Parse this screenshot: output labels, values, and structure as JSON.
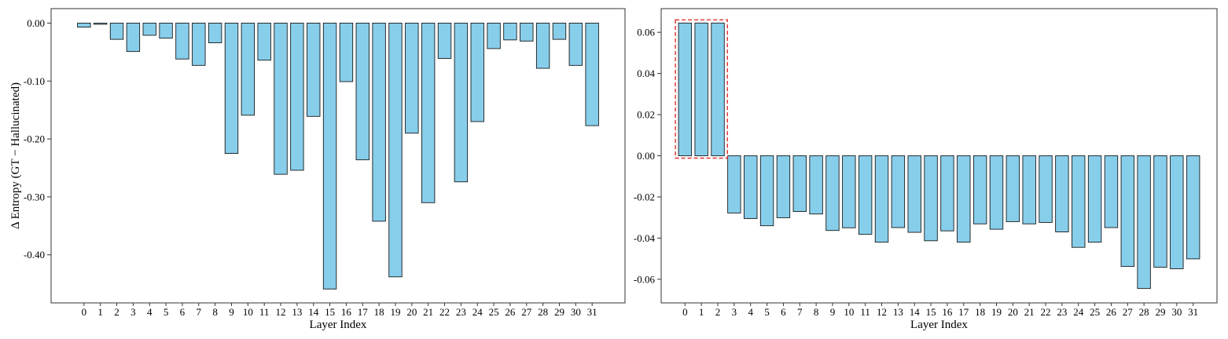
{
  "chart_data": [
    {
      "type": "bar",
      "categories": [
        "0",
        "1",
        "2",
        "3",
        "4",
        "5",
        "6",
        "7",
        "8",
        "9",
        "10",
        "11",
        "12",
        "13",
        "14",
        "15",
        "16",
        "17",
        "18",
        "19",
        "20",
        "21",
        "22",
        "23",
        "24",
        "25",
        "26",
        "27",
        "28",
        "29",
        "30",
        "31"
      ],
      "values": [
        -0.007,
        -0.002,
        -0.028,
        -0.049,
        -0.021,
        -0.026,
        -0.062,
        -0.073,
        -0.034,
        -0.225,
        -0.159,
        -0.064,
        -0.261,
        -0.254,
        -0.161,
        -0.459,
        -0.101,
        -0.236,
        -0.342,
        -0.438,
        -0.19,
        -0.31,
        -0.061,
        -0.274,
        -0.17,
        -0.044,
        -0.029,
        -0.031,
        -0.078,
        -0.028,
        -0.073,
        -0.177
      ],
      "xlabel": "Layer Index",
      "ylabel": "Δ Entropy (GT − Hallucinated)",
      "ylim": [
        -0.483,
        0.025
      ],
      "yticks": [
        0.0,
        -0.1,
        -0.2,
        -0.3,
        -0.4
      ],
      "ytick_labels": [
        "0.00",
        "-0.10",
        "-0.20",
        "-0.30",
        "-0.40"
      ],
      "bar_color": "#87ceeb",
      "edge_color": "#1a1a1a",
      "grid": false
    },
    {
      "type": "bar",
      "categories": [
        "0",
        "1",
        "2",
        "3",
        "4",
        "5",
        "6",
        "7",
        "8",
        "9",
        "10",
        "11",
        "12",
        "13",
        "14",
        "15",
        "16",
        "17",
        "18",
        "19",
        "20",
        "21",
        "22",
        "23",
        "24",
        "25",
        "26",
        "27",
        "28",
        "29",
        "30",
        "31"
      ],
      "values": [
        0.0645,
        0.0645,
        0.0645,
        -0.0278,
        -0.0305,
        -0.034,
        -0.0301,
        -0.0271,
        -0.0283,
        -0.0363,
        -0.035,
        -0.0382,
        -0.042,
        -0.0349,
        -0.0372,
        -0.0413,
        -0.0365,
        -0.042,
        -0.0331,
        -0.0357,
        -0.032,
        -0.0331,
        -0.0324,
        -0.037,
        -0.0445,
        -0.042,
        -0.0349,
        -0.0538,
        -0.0645,
        -0.0542,
        -0.0549,
        -0.0501
      ],
      "xlabel": "Layer Index",
      "ylabel": "",
      "ylim": [
        -0.0715,
        0.0715
      ],
      "yticks": [
        0.06,
        0.04,
        0.02,
        0.0,
        -0.02,
        -0.04,
        -0.06
      ],
      "ytick_labels": [
        "0.06",
        "0.04",
        "0.02",
        "0.00",
        "-0.02",
        "-0.04",
        "-0.06"
      ],
      "highlight": {
        "from": 0,
        "to": 2,
        "color": "#e03030"
      },
      "bar_color": "#87ceeb",
      "edge_color": "#1a1a1a",
      "grid": false
    }
  ]
}
